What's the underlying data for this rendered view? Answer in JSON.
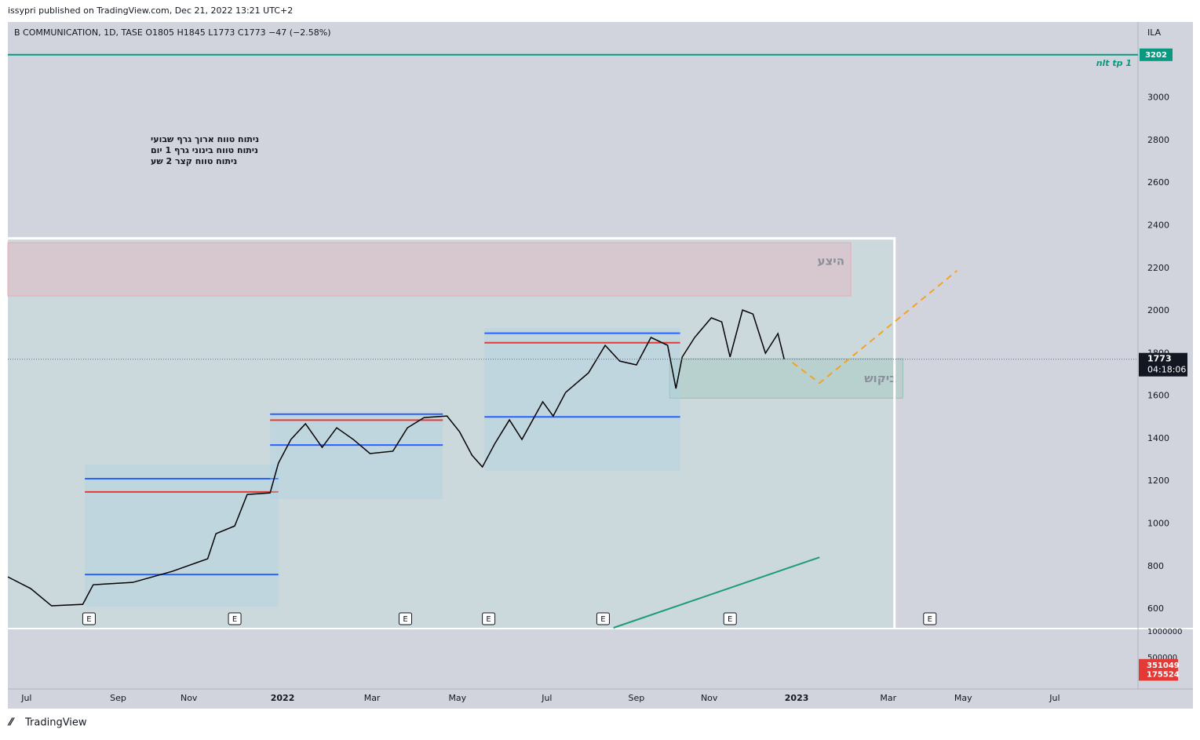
{
  "header": {
    "publisher": "issypri published on TradingView.com, Dec 21, 2022 13:21 UTC+2",
    "footer": "TradingView"
  },
  "chart_data": {
    "type": "line",
    "title": "B COMMUNICATION, 1D, TASE  O1805  H1845  L1773  C1773  −47 (−2.58%)",
    "currency": "ILA",
    "notes": [
      "ניתוח טווח ארוך גרף שבועי",
      "ניתוח טווח בינוני גרף 1 יום",
      "ניתוח טווח קצר 2 שע"
    ],
    "price": {
      "color": "#000000",
      "x": [
        -9,
        2,
        12,
        27,
        32,
        51,
        70,
        87,
        91,
        100,
        106,
        117,
        121,
        127,
        134,
        142,
        149,
        157,
        165,
        176,
        183,
        191,
        202,
        208,
        214,
        219,
        225,
        232,
        238,
        248,
        253,
        259,
        270,
        278,
        285,
        293,
        300,
        308,
        312,
        315,
        321,
        329,
        334,
        338,
        344,
        349,
        355,
        361,
        364
      ],
      "close": [
        751,
        696,
        615,
        622,
        714,
        725,
        777,
        836,
        954,
        990,
        1138,
        1145,
        1285,
        1396,
        1470,
        1359,
        1451,
        1396,
        1330,
        1341,
        1451,
        1499,
        1506,
        1433,
        1322,
        1267,
        1377,
        1488,
        1396,
        1573,
        1506,
        1617,
        1709,
        1838,
        1764,
        1746,
        1875,
        1838,
        1635,
        1783,
        1875,
        1967,
        1948,
        1783,
        2004,
        1985,
        1801,
        1893,
        1773
      ]
    },
    "last_price": {
      "value": 1773,
      "countdown": "04:18:06"
    },
    "target": {
      "value": 3202,
      "label": "nlt tp 1",
      "color": "#089981"
    },
    "zones": [
      {
        "label": "היצע",
        "x": [
          -9,
          396
        ],
        "range": [
          2070,
          2320
        ],
        "color": "#f2a3b3"
      },
      {
        "label": "ביקוש",
        "x": [
          309,
          421
        ],
        "range": [
          1590,
          1775
        ],
        "color": "#8fbfb0"
      }
    ],
    "range_end": {
      "x": 417,
      "top": 2340
    },
    "profiles": [
      {
        "x": [
          28,
          121
        ],
        "box": [
          611,
          1278
        ],
        "high": 1212,
        "poc": 1150,
        "low": 762
      },
      {
        "x": [
          117,
          200
        ],
        "box": [
          1116,
          1514
        ],
        "high": 1515,
        "poc": 1487,
        "low": 1370
      },
      {
        "x": [
          220,
          314
        ],
        "box": [
          1248,
          1919
        ],
        "high": 1895,
        "poc": 1850,
        "low": 1502
      }
    ],
    "forecast": {
      "x": [
        368,
        381,
        447
      ],
      "y": [
        1757,
        1661,
        2188
      ],
      "color": "#f7a21b"
    },
    "trend_arrow": {
      "x": [
        282,
        381
      ],
      "y": [
        512,
        843
      ],
      "color": "#1e9b7d"
    },
    "events": [
      {
        "x": 30,
        "label": "E"
      },
      {
        "x": 100,
        "label": "E"
      },
      {
        "x": 182,
        "label": "E"
      },
      {
        "x": 222,
        "label": "E"
      },
      {
        "x": 277,
        "label": "E"
      },
      {
        "x": 338,
        "label": "E"
      },
      {
        "x": 434,
        "label": "E"
      }
    ],
    "xlim": [
      -9,
      534
    ],
    "xticks": [
      {
        "value": 0,
        "label": "Jul"
      },
      {
        "value": 44,
        "label": "Sep"
      },
      {
        "value": 78,
        "label": "Nov"
      },
      {
        "value": 123,
        "label": "2022"
      },
      {
        "value": 166,
        "label": "Mar"
      },
      {
        "value": 207,
        "label": "May"
      },
      {
        "value": 250,
        "label": "Jul"
      },
      {
        "value": 293,
        "label": "Sep"
      },
      {
        "value": 328,
        "label": "Nov"
      },
      {
        "value": 370,
        "label": "2023"
      },
      {
        "value": 414,
        "label": "Mar"
      },
      {
        "value": 450,
        "label": "May"
      },
      {
        "value": 494,
        "label": "Jul"
      }
    ],
    "ylim": [
      512,
      3356
    ],
    "yticks": [
      600,
      800,
      1000,
      1200,
      1400,
      1600,
      1800,
      2000,
      2200,
      2400,
      2600,
      2800,
      3000
    ],
    "volume": {
      "ylim": [
        0,
        1045000
      ],
      "yticks": [
        500000,
        1000000
      ],
      "labels": [
        351049,
        175524
      ],
      "color": "#e53935"
    }
  }
}
